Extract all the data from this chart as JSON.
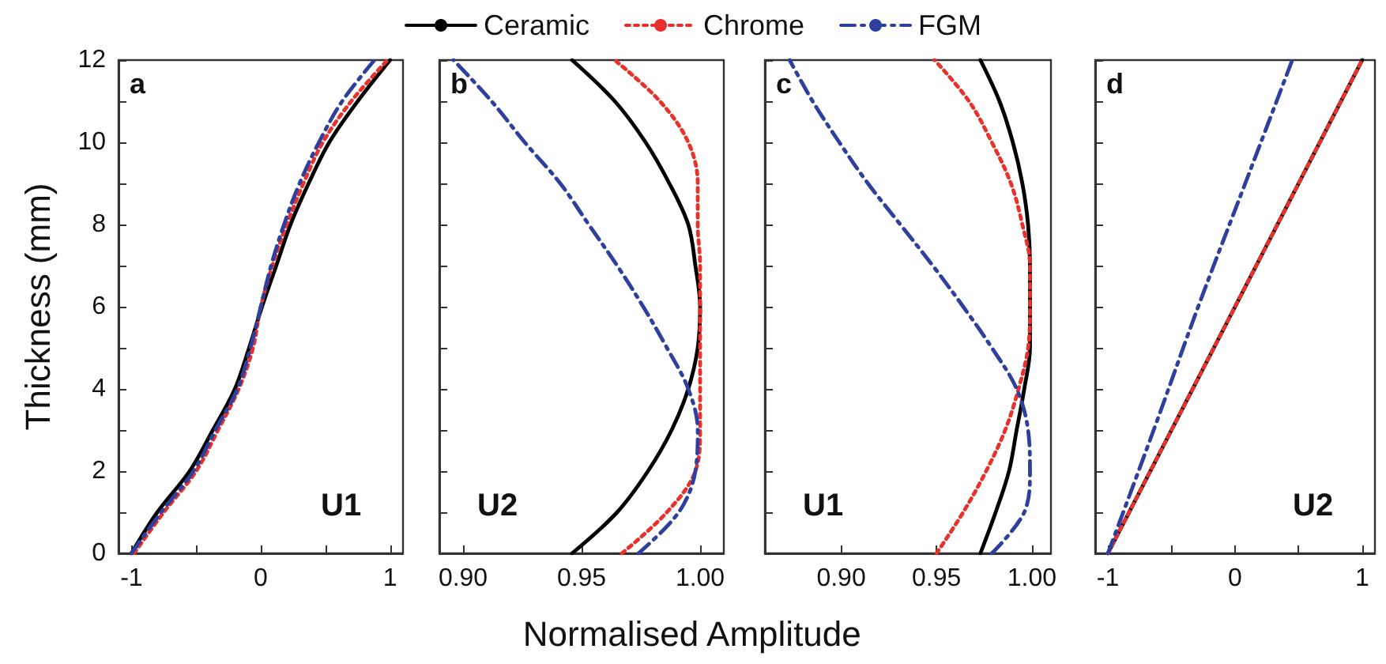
{
  "chart_data": [
    {
      "type": "line",
      "ylabel": "Thickness (mm)",
      "xlabel": "Normalised Amplitude",
      "legend": "top",
      "annotations": [
        "a",
        "U1"
      ],
      "xlim": [
        -1.1,
        1.1
      ],
      "xticks": [
        -1,
        {
          "value": -0.5,
          "label": null
        },
        0,
        {
          "value": 0.5,
          "label": null
        },
        1
      ],
      "ylim": [
        0,
        12
      ],
      "yticks": [
        0,
        {
          "value": 1,
          "label": null
        },
        2,
        {
          "value": 3,
          "label": null
        },
        4,
        {
          "value": 5,
          "label": null
        },
        6,
        {
          "value": 7,
          "label": null
        },
        8,
        {
          "value": 9,
          "label": null
        },
        10,
        {
          "value": 11,
          "label": null
        },
        12
      ],
      "series": [
        {
          "name": "Ceramic",
          "color": "#000000",
          "line_style": "solid",
          "x": [
            -1,
            -0.8,
            -0.55,
            -0.37,
            -0.2,
            -0.09,
            0.01,
            0.12,
            0.23,
            0.37,
            0.53,
            0.75,
            1.0
          ],
          "values": [
            0,
            1,
            2,
            3,
            4,
            5,
            6,
            7,
            8,
            9,
            10,
            11,
            12
          ]
        },
        {
          "name": "Chrome",
          "color": "#e8312a",
          "line_style": "dotted",
          "x": [
            -0.98,
            -0.75,
            -0.5,
            -0.33,
            -0.17,
            -0.06,
            0.0,
            0.09,
            0.2,
            0.33,
            0.48,
            0.7,
            0.98
          ],
          "values": [
            0,
            1,
            2,
            3,
            4,
            5,
            6,
            7,
            8,
            9,
            10,
            11,
            12
          ]
        },
        {
          "name": "FGM",
          "color": "#2e3f9e",
          "line_style": "dashed",
          "x": [
            -1.0,
            -0.77,
            -0.52,
            -0.35,
            -0.18,
            -0.08,
            0.0,
            0.08,
            0.18,
            0.3,
            0.45,
            0.63,
            0.88
          ],
          "values": [
            0,
            1,
            2,
            3,
            4,
            5,
            6,
            7,
            8,
            9,
            10,
            11,
            12
          ]
        }
      ]
    },
    {
      "type": "line",
      "annotations": [
        "b",
        "U2"
      ],
      "tick_labels": "x",
      "xlim": [
        0.89,
        1.01
      ],
      "xticks": [
        {
          "value": 0.9,
          "label": "0.90"
        },
        0.95,
        {
          "value": 1.0,
          "label": "1.00"
        }
      ],
      "ylim": [
        0,
        12
      ],
      "yticks": [
        0,
        {
          "value": 1,
          "label": null
        },
        2,
        {
          "value": 3,
          "label": null
        },
        4,
        {
          "value": 5,
          "label": null
        },
        6,
        {
          "value": 7,
          "label": null
        },
        8,
        {
          "value": 9,
          "label": null
        },
        10,
        {
          "value": 11,
          "label": null
        },
        12
      ],
      "series": [
        {
          "color": "#000000",
          "line_style": "solid",
          "x": [
            0.946,
            0.965,
            0.978,
            0.988,
            0.995,
            0.999,
            1.0,
            0.998,
            0.995,
            0.987,
            0.977,
            0.964,
            0.946
          ],
          "values": [
            0,
            1,
            2,
            3,
            4,
            5,
            6,
            7,
            8,
            9,
            10,
            11,
            12
          ]
        },
        {
          "color": "#e8312a",
          "line_style": "dotted",
          "x": [
            0.967,
            0.986,
            0.998,
            1.0,
            1.0,
            1.0,
            1.0,
            1.0,
            0.999,
            0.999,
            0.995,
            0.983,
            0.964
          ],
          "values": [
            0,
            1,
            2,
            3,
            4,
            5,
            6,
            7,
            8,
            9,
            10,
            11,
            12
          ]
        },
        {
          "color": "#2e3f9e",
          "line_style": "dashed",
          "x": [
            0.974,
            0.991,
            0.998,
            0.999,
            0.995,
            0.986,
            0.976,
            0.965,
            0.953,
            0.941,
            0.926,
            0.912,
            0.896
          ],
          "values": [
            0,
            1,
            2,
            3,
            4,
            5,
            6,
            7,
            8,
            9,
            10,
            11,
            12
          ]
        }
      ]
    },
    {
      "type": "line",
      "annotations": [
        "c",
        "U1"
      ],
      "tick_labels": "x",
      "xlim": [
        0.86,
        1.01
      ],
      "xticks": [
        {
          "value": 0.9,
          "label": "0.90"
        },
        0.95,
        {
          "value": 1.0,
          "label": "1.00"
        }
      ],
      "ylim": [
        0,
        12
      ],
      "yticks": [
        0,
        {
          "value": 1,
          "label": null
        },
        2,
        {
          "value": 3,
          "label": null
        },
        4,
        {
          "value": 5,
          "label": null
        },
        6,
        {
          "value": 7,
          "label": null
        },
        8,
        {
          "value": 9,
          "label": null
        },
        10,
        {
          "value": 11,
          "label": null
        },
        12
      ],
      "series": [
        {
          "color": "#000000",
          "line_style": "solid",
          "x": [
            0.973,
            0.981,
            0.988,
            0.992,
            0.996,
            0.999,
            0.999,
            0.999,
            0.998,
            0.995,
            0.99,
            0.983,
            0.973
          ],
          "values": [
            0,
            1,
            2,
            3,
            4,
            5,
            6,
            7,
            8,
            9,
            10,
            11,
            12
          ]
        },
        {
          "color": "#e8312a",
          "line_style": "dotted",
          "x": [
            0.95,
            0.964,
            0.976,
            0.986,
            0.993,
            0.998,
            0.999,
            0.999,
            0.995,
            0.989,
            0.979,
            0.967,
            0.949
          ],
          "values": [
            0,
            1,
            2,
            3,
            4,
            5,
            6,
            7,
            8,
            9,
            10,
            11,
            12
          ]
        },
        {
          "color": "#2e3f9e",
          "line_style": "dashed",
          "x": [
            0.979,
            0.996,
            0.999,
            0.998,
            0.992,
            0.979,
            0.964,
            0.948,
            0.931,
            0.914,
            0.899,
            0.885,
            0.873
          ],
          "values": [
            0,
            1,
            2,
            3,
            4,
            5,
            6,
            7,
            8,
            9,
            10,
            11,
            12
          ]
        }
      ]
    },
    {
      "type": "line",
      "annotations": [
        "d",
        "U2"
      ],
      "tick_labels": "x",
      "xlim": [
        -1.1,
        1.1
      ],
      "xticks": [
        -1,
        {
          "value": -0.5,
          "label": null
        },
        0,
        {
          "value": 0.5,
          "label": null
        },
        1
      ],
      "ylim": [
        0,
        12
      ],
      "yticks": [
        0,
        {
          "value": 1,
          "label": null
        },
        2,
        {
          "value": 3,
          "label": null
        },
        4,
        {
          "value": 5,
          "label": null
        },
        6,
        {
          "value": 7,
          "label": null
        },
        8,
        {
          "value": 9,
          "label": null
        },
        10,
        {
          "value": 11,
          "label": null
        },
        12
      ],
      "series": [
        {
          "color": "#000000",
          "line_style": "solid",
          "x": [
            -1,
            -0.5,
            0,
            0.5,
            1
          ],
          "values": [
            0,
            3,
            6,
            9,
            12
          ]
        },
        {
          "color": "#e8312a",
          "line_style": "dotted",
          "x": [
            -1,
            -0.5,
            0,
            0.5,
            1
          ],
          "values": [
            0,
            3,
            6,
            9,
            12
          ]
        },
        {
          "color": "#2e3f9e",
          "line_style": "dashed",
          "x": [
            -1,
            -0.64,
            -0.29,
            0.08,
            0.45
          ],
          "values": [
            0,
            3,
            6,
            9,
            12
          ]
        }
      ]
    }
  ]
}
